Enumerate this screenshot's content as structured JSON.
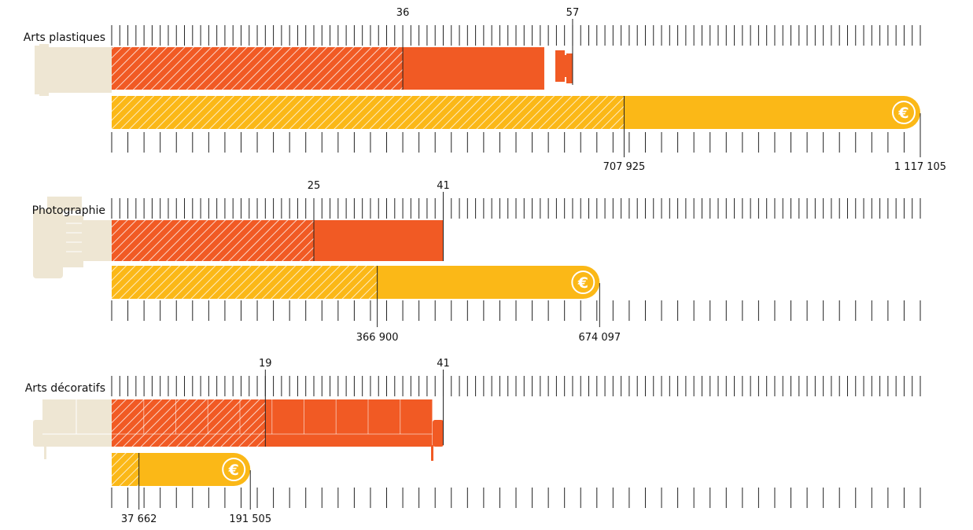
{
  "chart_data": {
    "type": "bar",
    "colors": {
      "count": "#F15A24",
      "amount": "#FBB817",
      "object": "#EEE6D3",
      "tick": "#222222"
    },
    "icons": [
      "paint-tube-icon",
      "camera-icon",
      "sofa-icon",
      "euro-icon"
    ],
    "groups": [
      {
        "category": "Arts plastiques",
        "count_partial": 36,
        "count_total": 57,
        "amount_partial": 707925,
        "amount_total": 1117105,
        "count_partial_label": "36",
        "count_total_label": "57",
        "amount_partial_label": "707 925",
        "amount_total_label": "1 117 105"
      },
      {
        "category": "Photographie",
        "count_partial": 25,
        "count_total": 41,
        "amount_partial": 366900,
        "amount_total": 674097,
        "count_partial_label": "25",
        "count_total_label": "41",
        "amount_partial_label": "366 900",
        "amount_total_label": "674 097"
      },
      {
        "category": "Arts décoratifs",
        "count_partial": 19,
        "count_total": 41,
        "amount_partial": 37662,
        "amount_total": 191505,
        "count_partial_label": "19",
        "count_total_label": "41",
        "amount_partial_label": "37 662",
        "amount_total_label": "191 505"
      }
    ]
  }
}
